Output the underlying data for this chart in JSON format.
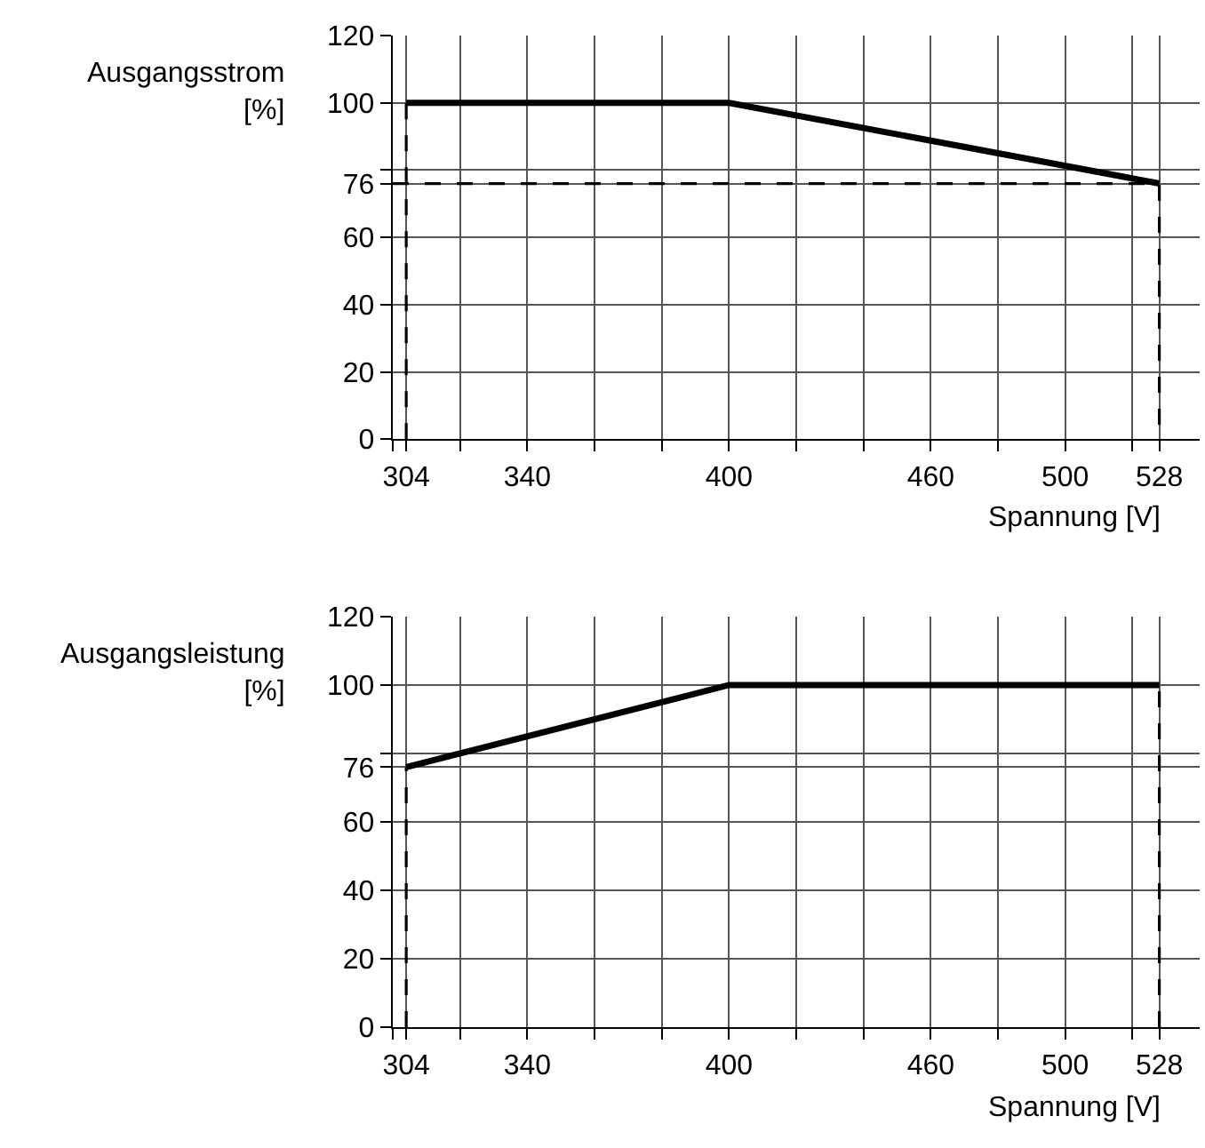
{
  "chart_data": [
    {
      "type": "line",
      "xlabel": "Spannung [V]",
      "ylabel": "Ausgangsstrom\n[%]",
      "xlim": [
        300,
        540
      ],
      "ylim": [
        0,
        120
      ],
      "grid": true,
      "xticks": [
        {
          "value": 300,
          "label": null
        },
        304,
        {
          "value": 320,
          "label": null
        },
        340,
        {
          "value": 360,
          "label": null
        },
        {
          "value": 380,
          "label": null
        },
        400,
        {
          "value": 420,
          "label": null
        },
        {
          "value": 440,
          "label": null
        },
        460,
        {
          "value": 480,
          "label": null
        },
        500,
        {
          "value": 520,
          "label": null
        },
        528
      ],
      "yticks": [
        0,
        20,
        40,
        60,
        76,
        {
          "value": 80,
          "label": null
        },
        100,
        120
      ],
      "series": [
        {
          "color": "#000000",
          "x": [
            304,
            400,
            528
          ],
          "values": [
            100,
            100,
            76
          ],
          "line_style": "solid"
        },
        {
          "color": "#000000",
          "x": [
            304,
            304
          ],
          "values": [
            0,
            100
          ],
          "line_style": "dashed"
        },
        {
          "color": "#000000",
          "x": [
            300,
            528,
            528
          ],
          "values": [
            76,
            76,
            0
          ],
          "line_style": "dashed"
        }
      ]
    },
    {
      "type": "line",
      "xlabel": "Spannung [V]",
      "ylabel": "Ausgangsleistung\n[%]",
      "xlim": [
        300,
        540
      ],
      "ylim": [
        0,
        120
      ],
      "grid": true,
      "xticks": [
        {
          "value": 300,
          "label": null
        },
        304,
        {
          "value": 320,
          "label": null
        },
        340,
        {
          "value": 360,
          "label": null
        },
        {
          "value": 380,
          "label": null
        },
        400,
        {
          "value": 420,
          "label": null
        },
        {
          "value": 440,
          "label": null
        },
        460,
        {
          "value": 480,
          "label": null
        },
        500,
        {
          "value": 520,
          "label": null
        },
        528
      ],
      "yticks": [
        0,
        20,
        40,
        60,
        76,
        {
          "value": 80,
          "label": null
        },
        100,
        120
      ],
      "series": [
        {
          "color": "#000000",
          "x": [
            304,
            400,
            528
          ],
          "values": [
            76,
            100,
            100
          ],
          "line_style": "solid"
        },
        {
          "color": "#000000",
          "x": [
            304,
            304
          ],
          "values": [
            0,
            76
          ],
          "line_style": "dashed"
        },
        {
          "color": "#000000",
          "x": [
            528,
            528
          ],
          "values": [
            0,
            100
          ],
          "line_style": "dashed"
        }
      ]
    }
  ]
}
